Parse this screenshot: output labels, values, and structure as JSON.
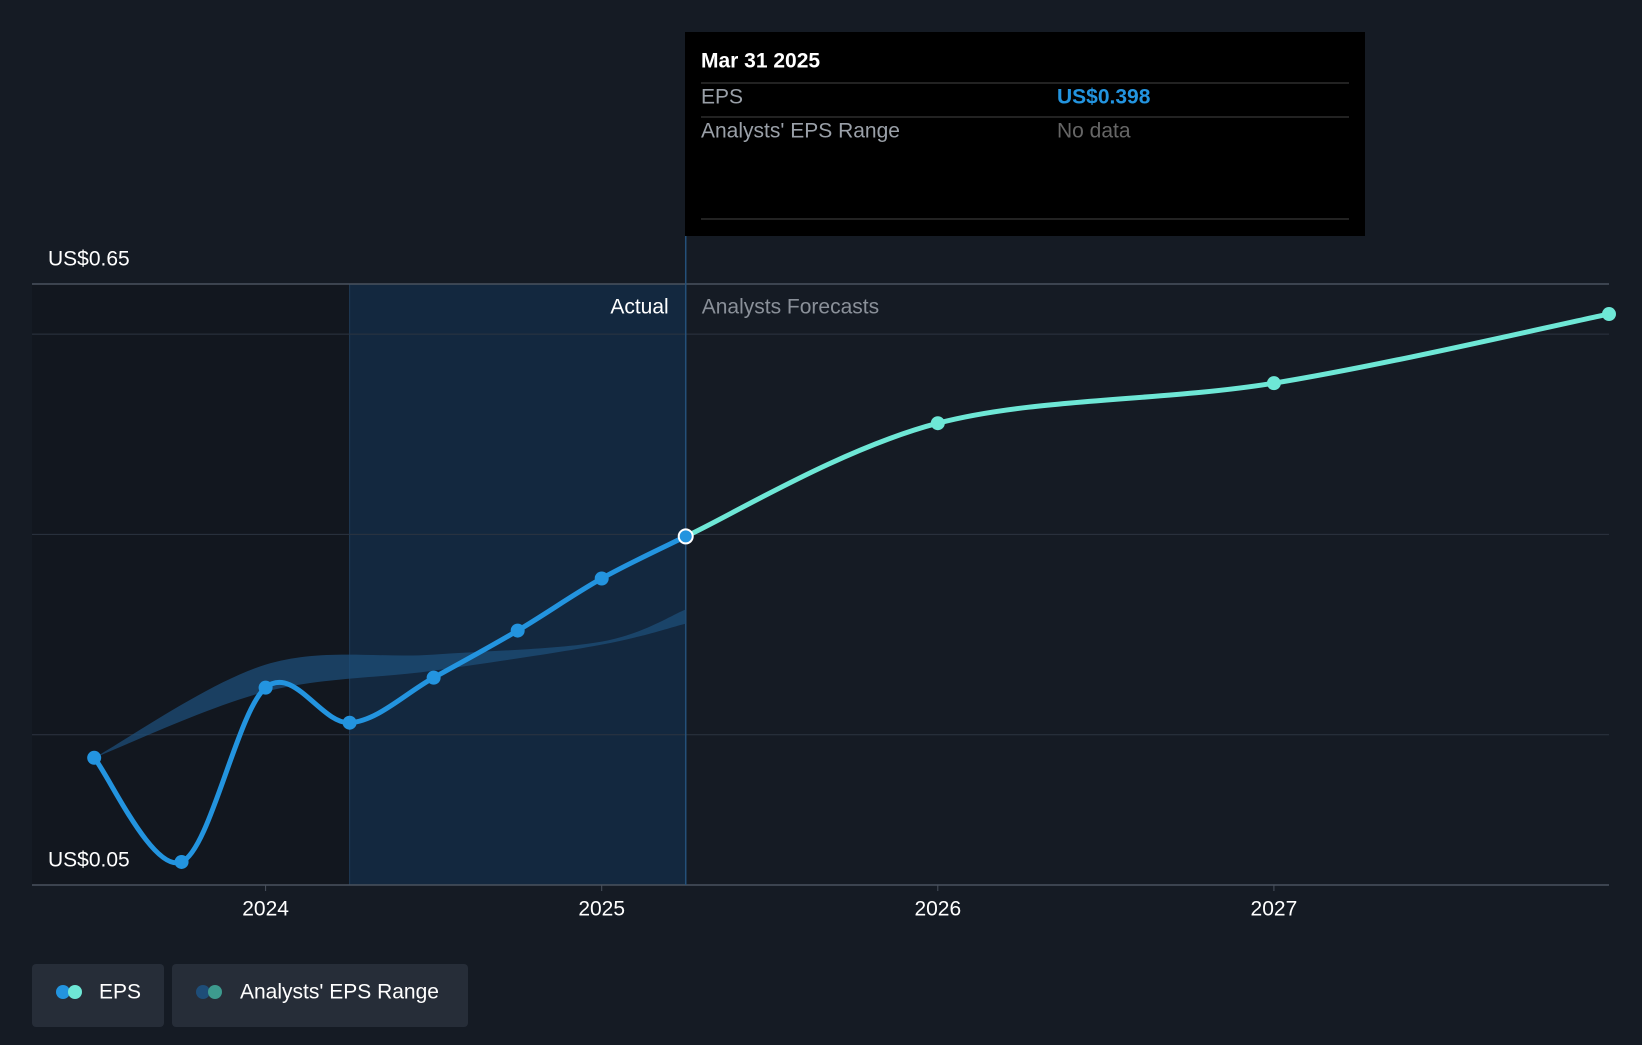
{
  "chart_data": {
    "type": "line",
    "xlim": [
      2023.305,
      2027.997
    ],
    "xticks": [
      2024,
      2025,
      2026,
      2027
    ],
    "ylim": [
      0.05,
      0.65
    ],
    "yticks": [
      {
        "value": 0.05,
        "label": "US$0.05"
      },
      {
        "value": 0.65,
        "label": "US$0.65"
      }
    ],
    "gridlines": [
      0.2,
      0.4,
      0.6
    ],
    "highlight_x": [
      2024.25,
      2025.25
    ],
    "period_labels": {
      "actual": "Actual",
      "forecast": "Analysts Forecasts"
    },
    "series": [
      {
        "name": "EPS",
        "color": "#2394df",
        "x": [
          2023.49,
          2023.75,
          2024.0,
          2024.25,
          2024.5,
          2024.75,
          2025.0,
          2025.25
        ],
        "values": [
          0.177,
          0.073,
          0.247,
          0.212,
          0.257,
          0.304,
          0.356,
          0.398
        ]
      },
      {
        "color": "#6ee7d6",
        "x": [
          2025.25,
          2026.0,
          2027.0,
          2027.997
        ],
        "values": [
          0.398,
          0.511,
          0.551,
          0.62
        ]
      }
    ],
    "range": {
      "name": "Analysts' EPS Range",
      "color": "#1e4d78",
      "x": [
        2023.49,
        2024.0,
        2024.5,
        2025.0,
        2025.25
      ],
      "low": [
        0.177,
        0.243,
        0.264,
        0.29,
        0.311
      ],
      "high": [
        0.177,
        0.27,
        0.28,
        0.293,
        0.325
      ]
    },
    "tooltip": {
      "date": "Mar 31 2025",
      "rows": [
        [
          "EPS",
          "US$0.398"
        ],
        [
          "Analysts' EPS Range",
          "No data"
        ]
      ]
    },
    "legend_colors": {
      "eps": [
        "#2394df",
        "#6ee7d6"
      ],
      "range": [
        "#1e4d78",
        "#3d9a8e"
      ]
    }
  }
}
